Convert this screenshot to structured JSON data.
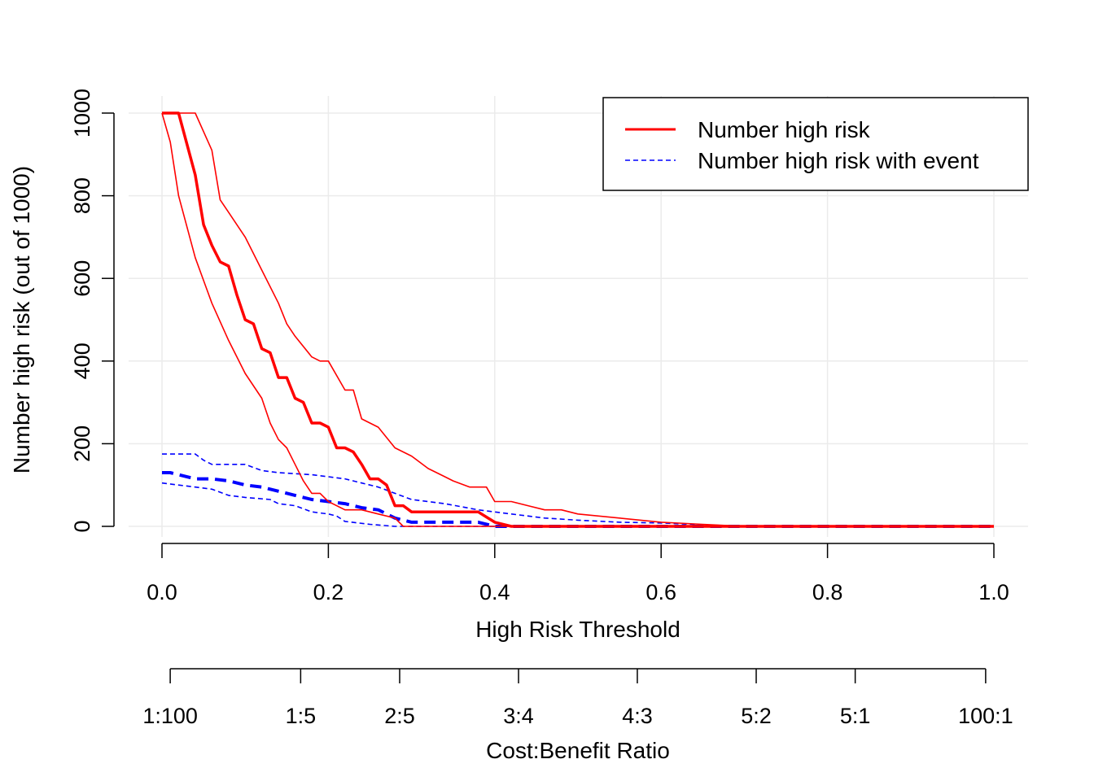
{
  "chart_data": {
    "type": "line",
    "xlabel": "High Risk Threshold",
    "ylabel": "Number high risk (out of 1000)",
    "x2label": "Cost:Benefit Ratio",
    "xlim": [
      0,
      1
    ],
    "ylim": [
      0,
      1000
    ],
    "grid": true,
    "legend_position": "top-right",
    "x_ticks": [
      "0.0",
      "0.2",
      "0.4",
      "0.6",
      "0.8",
      "1.0"
    ],
    "y_ticks": [
      "0",
      "200",
      "400",
      "600",
      "800",
      "1000"
    ],
    "cost_benefit_ticks": [
      {
        "label": "1:100",
        "x": 0.0099
      },
      {
        "label": "1:5",
        "x": 0.1667
      },
      {
        "label": "2:5",
        "x": 0.2857
      },
      {
        "label": "3:4",
        "x": 0.4286
      },
      {
        "label": "4:3",
        "x": 0.5714
      },
      {
        "label": "5:2",
        "x": 0.7143
      },
      {
        "label": "5:1",
        "x": 0.8333
      },
      {
        "label": "100:1",
        "x": 0.9901
      }
    ],
    "series": [
      {
        "name": "Number high risk",
        "color": "#ff0000",
        "dash": "solid",
        "in_legend": true,
        "x": [
          0,
          0.02,
          0.04,
          0.05,
          0.06,
          0.07,
          0.08,
          0.09,
          0.1,
          0.11,
          0.12,
          0.13,
          0.14,
          0.15,
          0.16,
          0.17,
          0.18,
          0.19,
          0.2,
          0.21,
          0.22,
          0.23,
          0.24,
          0.25,
          0.26,
          0.27,
          0.28,
          0.29,
          0.3,
          0.32,
          0.34,
          0.36,
          0.38,
          0.4,
          0.42,
          0.5,
          0.6,
          0.7,
          0.8,
          0.9,
          1.0
        ],
        "y": [
          1000,
          1000,
          850,
          730,
          680,
          640,
          630,
          560,
          500,
          490,
          430,
          420,
          360,
          360,
          310,
          300,
          250,
          250,
          240,
          190,
          190,
          180,
          150,
          115,
          115,
          100,
          50,
          50,
          35,
          35,
          35,
          35,
          35,
          10,
          0,
          0,
          0,
          0,
          0,
          0,
          0
        ]
      },
      {
        "name": "Number high risk upper",
        "color": "#ff0000",
        "dash": "solid",
        "in_legend": false,
        "x": [
          0,
          0.04,
          0.06,
          0.07,
          0.08,
          0.1,
          0.12,
          0.14,
          0.15,
          0.16,
          0.18,
          0.19,
          0.2,
          0.22,
          0.23,
          0.24,
          0.25,
          0.26,
          0.28,
          0.3,
          0.32,
          0.34,
          0.35,
          0.37,
          0.39,
          0.4,
          0.42,
          0.44,
          0.46,
          0.48,
          0.5,
          0.55,
          0.6,
          0.65,
          0.7,
          0.8,
          1.0
        ],
        "y": [
          1000,
          1000,
          910,
          790,
          760,
          700,
          620,
          540,
          490,
          460,
          410,
          400,
          400,
          330,
          330,
          260,
          250,
          240,
          190,
          170,
          140,
          120,
          110,
          95,
          95,
          60,
          60,
          50,
          40,
          40,
          30,
          20,
          10,
          5,
          0,
          0,
          0
        ]
      },
      {
        "name": "Number high risk lower",
        "color": "#ff0000",
        "dash": "solid",
        "in_legend": false,
        "x": [
          0,
          0.01,
          0.02,
          0.04,
          0.06,
          0.08,
          0.1,
          0.12,
          0.13,
          0.14,
          0.15,
          0.16,
          0.17,
          0.18,
          0.19,
          0.2,
          0.22,
          0.24,
          0.26,
          0.28,
          0.29,
          0.3,
          0.4,
          0.6,
          0.8,
          1.0
        ],
        "y": [
          1000,
          930,
          800,
          650,
          540,
          450,
          370,
          310,
          250,
          210,
          190,
          150,
          110,
          80,
          80,
          60,
          40,
          40,
          30,
          20,
          0,
          0,
          0,
          0,
          0,
          0
        ]
      },
      {
        "name": "Number high risk with event",
        "color": "#0000ff",
        "dash": "dashed",
        "in_legend": true,
        "x": [
          0,
          0.01,
          0.02,
          0.04,
          0.06,
          0.08,
          0.1,
          0.12,
          0.14,
          0.16,
          0.18,
          0.2,
          0.22,
          0.24,
          0.26,
          0.28,
          0.3,
          0.38,
          0.4,
          0.42,
          0.6,
          0.8,
          1.0
        ],
        "y": [
          130,
          130,
          125,
          115,
          115,
          110,
          100,
          95,
          85,
          75,
          65,
          60,
          55,
          45,
          40,
          20,
          10,
          10,
          0,
          0,
          0,
          0,
          0
        ]
      },
      {
        "name": "Number high risk with event upper",
        "color": "#0000ff",
        "dash": "dashed",
        "in_legend": false,
        "x": [
          0,
          0.02,
          0.04,
          0.05,
          0.06,
          0.1,
          0.12,
          0.14,
          0.18,
          0.2,
          0.22,
          0.24,
          0.26,
          0.28,
          0.3,
          0.34,
          0.38,
          0.42,
          0.46,
          0.5,
          0.55,
          0.6,
          0.65,
          0.7,
          0.8,
          1.0
        ],
        "y": [
          175,
          175,
          175,
          160,
          150,
          150,
          135,
          130,
          125,
          120,
          115,
          105,
          95,
          80,
          65,
          55,
          40,
          30,
          20,
          15,
          10,
          8,
          4,
          0,
          0,
          0
        ]
      },
      {
        "name": "Number high risk with event lower",
        "color": "#0000ff",
        "dash": "dashed",
        "in_legend": false,
        "x": [
          0,
          0.02,
          0.04,
          0.06,
          0.08,
          0.1,
          0.13,
          0.14,
          0.16,
          0.18,
          0.2,
          0.21,
          0.22,
          0.25,
          0.28,
          0.3,
          0.4,
          0.6,
          0.8,
          1.0
        ],
        "y": [
          105,
          100,
          95,
          90,
          75,
          70,
          65,
          55,
          50,
          35,
          30,
          25,
          12,
          5,
          0,
          0,
          0,
          0,
          0,
          0
        ]
      }
    ]
  }
}
